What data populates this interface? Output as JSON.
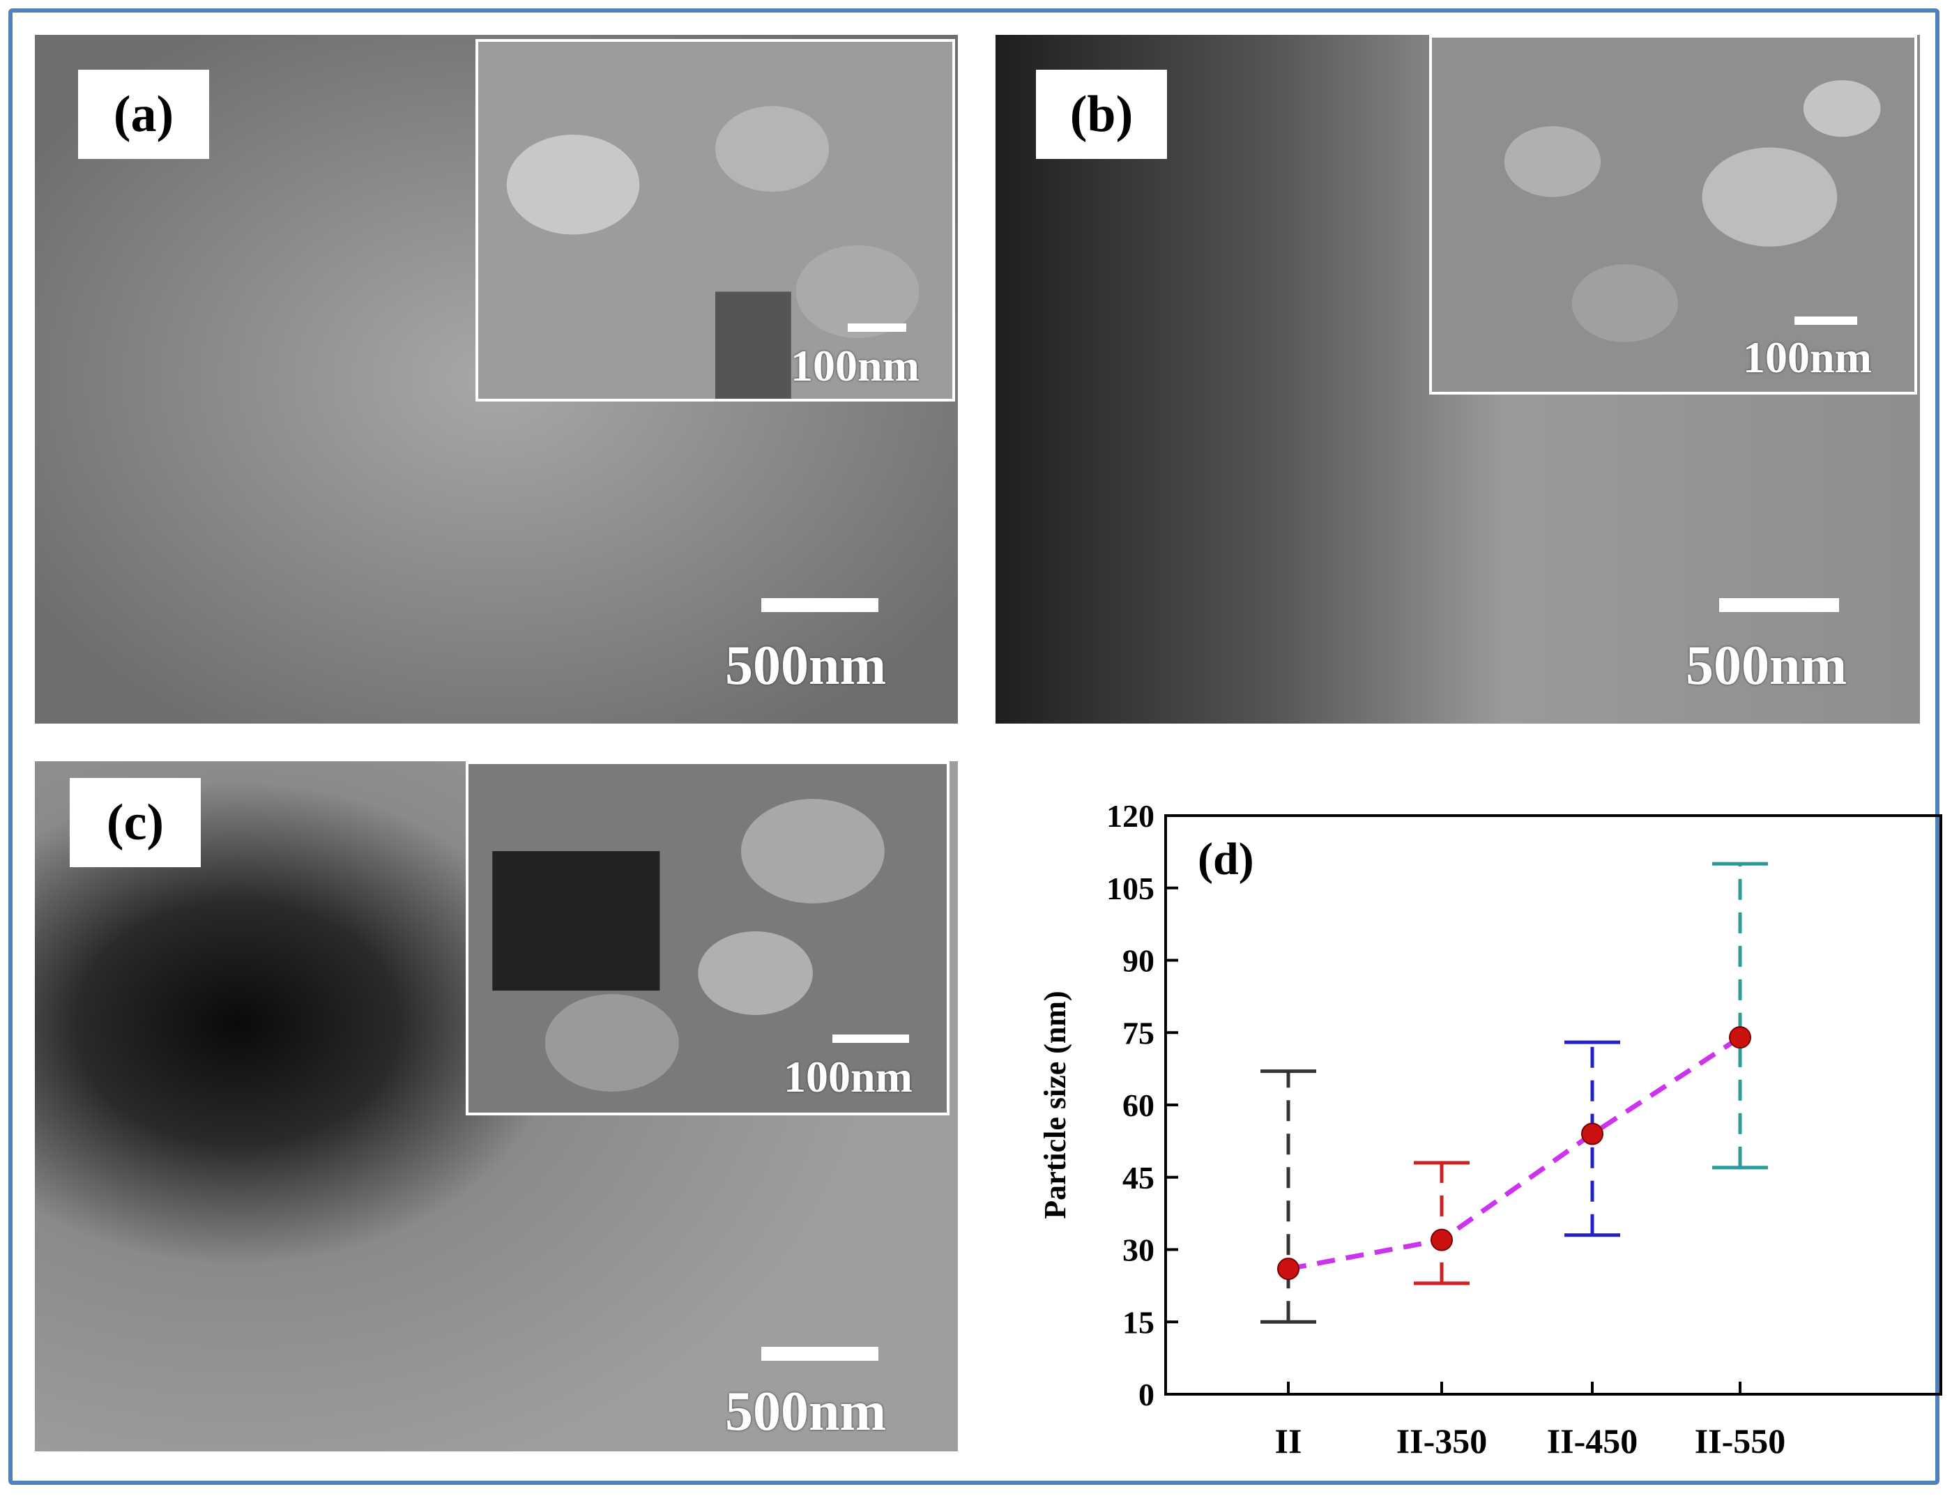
{
  "panels": {
    "a": {
      "label": "(a)",
      "scale_main": "500nm",
      "scale_inset": "100nm"
    },
    "b": {
      "label": "(b)",
      "scale_main": "500nm",
      "scale_inset": "100nm"
    },
    "c": {
      "label": "(c)",
      "scale_main": "500nm",
      "scale_inset": "100nm"
    }
  },
  "colors": {
    "frame": "#4f81bd",
    "trend_line": "#cc33ee",
    "marker": "#cc1111"
  },
  "chart_data": {
    "type": "scatter",
    "panel_label": "(d)",
    "title": "",
    "xlabel": "",
    "ylabel": "Particle size (nm)",
    "categories": [
      "II",
      "II-350",
      "II-450",
      "II-550"
    ],
    "ylim": [
      0,
      120
    ],
    "yticks": [
      0,
      15,
      30,
      45,
      60,
      75,
      90,
      105,
      120
    ],
    "series": [
      {
        "values": [
          26,
          32,
          54,
          74
        ],
        "error_low": [
          15,
          23,
          33,
          47
        ],
        "error_high": [
          67,
          48,
          73,
          110
        ],
        "error_colors": [
          "#333333",
          "#cc2222",
          "#2222cc",
          "#2a9a9a"
        ],
        "line_style": "dashed"
      }
    ],
    "grid": false,
    "legend": "none"
  }
}
